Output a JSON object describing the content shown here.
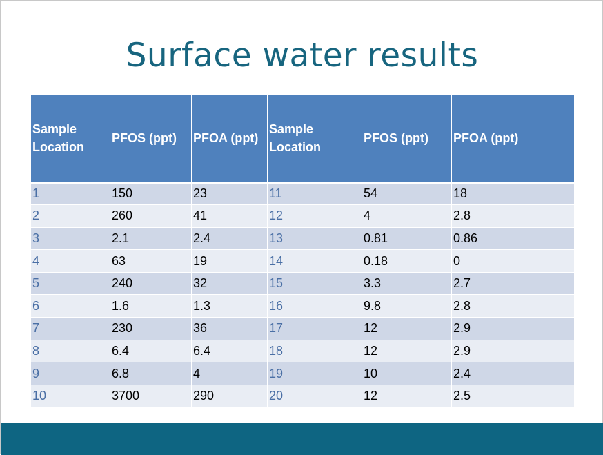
{
  "slide": {
    "title": "Surface water results"
  },
  "table": {
    "headers": [
      "Sample Location",
      "PFOS (ppt)",
      "PFOA (ppt)",
      "Sample Location",
      "PFOS (ppt)",
      "PFOA (ppt)"
    ],
    "rows": [
      [
        "1",
        "150",
        "23",
        "11",
        "54",
        "18"
      ],
      [
        "2",
        "260",
        "41",
        "12",
        "4",
        "2.8"
      ],
      [
        "3",
        "2.1",
        "2.4",
        "13",
        "0.81",
        "0.86"
      ],
      [
        "4",
        "63",
        "19",
        "14",
        "0.18",
        "0"
      ],
      [
        "5",
        "240",
        "32",
        "15",
        "3.3",
        "2.7"
      ],
      [
        "6",
        "1.6",
        "1.3",
        "16",
        "9.8",
        "2.8"
      ],
      [
        "7",
        "230",
        "36",
        "17",
        "12",
        "2.9"
      ],
      [
        "8",
        "6.4",
        "6.4",
        "18",
        "12",
        "2.9"
      ],
      [
        "9",
        "6.8",
        "4",
        "19",
        "10",
        "2.4"
      ],
      [
        "10",
        "3700",
        "290",
        "20",
        "12",
        "2.5"
      ]
    ]
  },
  "colors": {
    "title": "#17657f",
    "header_bg": "#4f81bd",
    "row_odd_bg": "#cfd7e7",
    "row_even_bg": "#e9edf4",
    "location_text": "#4a6fa5",
    "footer_bar": "#0e6582"
  }
}
